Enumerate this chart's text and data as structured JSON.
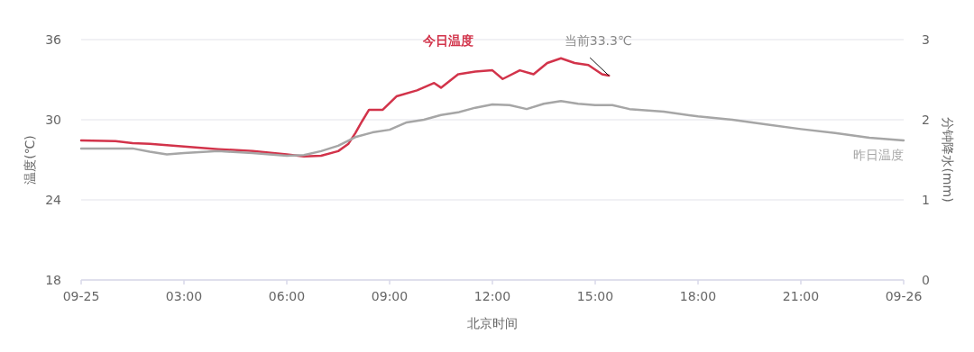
{
  "chart_data": {
    "type": "line",
    "xlabel": "北京时间",
    "ylabel": "温度(℃)",
    "y2label": "分钟降水(mm)",
    "xlim": [
      0,
      24
    ],
    "xticks": [
      {
        "value": 0,
        "label": "09-25"
      },
      {
        "value": 3,
        "label": "03:00"
      },
      {
        "value": 6,
        "label": "06:00"
      },
      {
        "value": 9,
        "label": "09:00"
      },
      {
        "value": 12,
        "label": "12:00"
      },
      {
        "value": 15,
        "label": "15:00"
      },
      {
        "value": 18,
        "label": "18:00"
      },
      {
        "value": 21,
        "label": "21:00"
      },
      {
        "value": 24,
        "label": "09-26"
      }
    ],
    "ylim": [
      18,
      36
    ],
    "yticks": [
      18,
      24,
      30,
      36
    ],
    "y2lim": [
      0,
      3
    ],
    "y2ticks": [
      0,
      1,
      2,
      3
    ],
    "grid": "y",
    "series": [
      {
        "name": "今日温度",
        "color": "#d2334a",
        "x": [
          0,
          1,
          1.5,
          2,
          3,
          4,
          5,
          6,
          6.5,
          7,
          7.5,
          7.8,
          8,
          8.2,
          8.4,
          8.8,
          9.2,
          9.8,
          10.3,
          10.5,
          11,
          11.5,
          12,
          12.3,
          12.8,
          13.2,
          13.6,
          14,
          14.4,
          14.8,
          15.2,
          15.4
        ],
        "values": [
          28.45,
          28.4,
          28.25,
          28.2,
          28.0,
          27.8,
          27.65,
          27.4,
          27.25,
          27.3,
          27.65,
          28.2,
          29.0,
          29.9,
          30.75,
          30.75,
          31.75,
          32.2,
          32.75,
          32.4,
          33.4,
          33.6,
          33.7,
          33.05,
          33.7,
          33.4,
          34.25,
          34.6,
          34.25,
          34.1,
          33.4,
          33.3
        ]
      },
      {
        "name": "昨日温度",
        "color": "#a6a6a6",
        "x": [
          0,
          1.5,
          2,
          2.5,
          3,
          4,
          5,
          6,
          6.5,
          7,
          7.5,
          8,
          8.5,
          9,
          9.5,
          10,
          10.5,
          11,
          11.5,
          12,
          12.5,
          13,
          13.5,
          14,
          14.5,
          15,
          15.5,
          16,
          17,
          18,
          19,
          20,
          21,
          22,
          23,
          24
        ],
        "values": [
          27.85,
          27.85,
          27.6,
          27.4,
          27.5,
          27.65,
          27.5,
          27.3,
          27.35,
          27.65,
          28.05,
          28.7,
          29.05,
          29.25,
          29.8,
          30.0,
          30.35,
          30.55,
          30.9,
          31.15,
          31.1,
          30.8,
          31.2,
          31.4,
          31.2,
          31.1,
          31.1,
          30.8,
          30.6,
          30.25,
          30.0,
          29.65,
          29.3,
          29.0,
          28.65,
          28.45
        ]
      }
    ],
    "annotations": [
      {
        "text": "当前33.3℃",
        "x": 15.4,
        "y": 33.3
      }
    ]
  }
}
